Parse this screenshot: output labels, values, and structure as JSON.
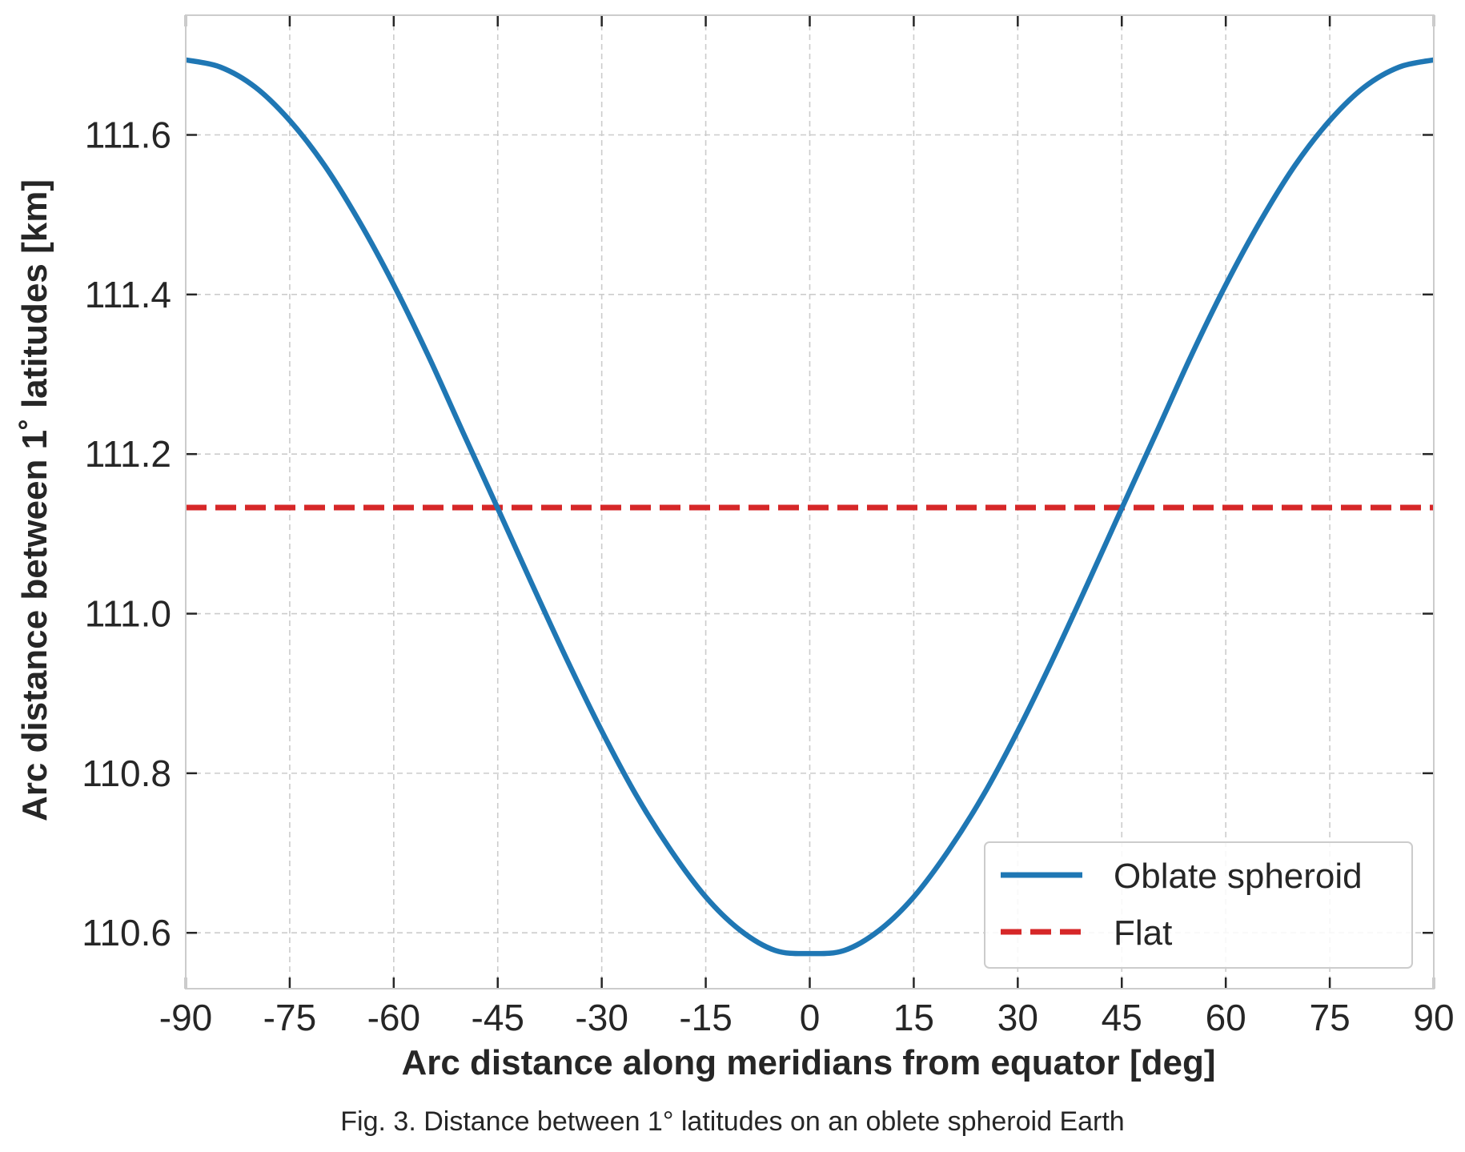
{
  "caption": "Fig. 3. Distance between 1° latitudes on an oblete spheroid Earth",
  "chart_data": {
    "type": "line",
    "xlabel": "Arc distance along meridians from equator [deg]",
    "ylabel": "Arc distance between 1$^\\circ$ latitudes [km]",
    "ylabel_display": "Arc distance between 1˚ latitudes [km]",
    "xlim": [
      -90,
      90
    ],
    "ylim": [
      110.53,
      111.75
    ],
    "xticks": [
      -90,
      -75,
      -60,
      -45,
      -30,
      -15,
      0,
      15,
      30,
      45,
      60,
      75,
      90
    ],
    "xtick_labels": [
      "-90",
      "-75",
      "-60",
      "-45",
      "-30",
      "-15",
      "0",
      "15",
      "30",
      "45",
      "60",
      "75",
      "90"
    ],
    "yticks": [
      110.6,
      110.8,
      111.0,
      111.2,
      111.4,
      111.6
    ],
    "ytick_labels": [
      "110.6",
      "110.8",
      "111.0",
      "111.2",
      "111.4",
      "111.6"
    ],
    "grid": true,
    "legend_position": "lower-right",
    "series": [
      {
        "name": "Oblate spheroid",
        "style": "solid",
        "color": "#1f77b4",
        "x": [
          -90,
          -85,
          -80,
          -75,
          -70,
          -65,
          -60,
          -55,
          -50,
          -45,
          -40,
          -35,
          -30,
          -25,
          -20,
          -15,
          -10,
          -5,
          0,
          5,
          10,
          15,
          20,
          25,
          30,
          35,
          40,
          45,
          50,
          55,
          60,
          65,
          70,
          75,
          80,
          85,
          90
        ],
        "y": [
          111.694,
          111.685,
          111.66,
          111.618,
          111.562,
          111.492,
          111.412,
          111.323,
          111.227,
          111.132,
          111.036,
          110.942,
          110.853,
          110.772,
          110.703,
          110.645,
          110.603,
          110.578,
          110.574,
          110.578,
          110.603,
          110.645,
          110.703,
          110.772,
          110.853,
          110.942,
          111.036,
          111.132,
          111.227,
          111.323,
          111.412,
          111.492,
          111.562,
          111.618,
          111.66,
          111.685,
          111.694
        ]
      },
      {
        "name": "Flat",
        "style": "dashed",
        "color": "#d62728",
        "x": [
          -90,
          90
        ],
        "y": [
          111.133,
          111.133
        ]
      }
    ]
  }
}
